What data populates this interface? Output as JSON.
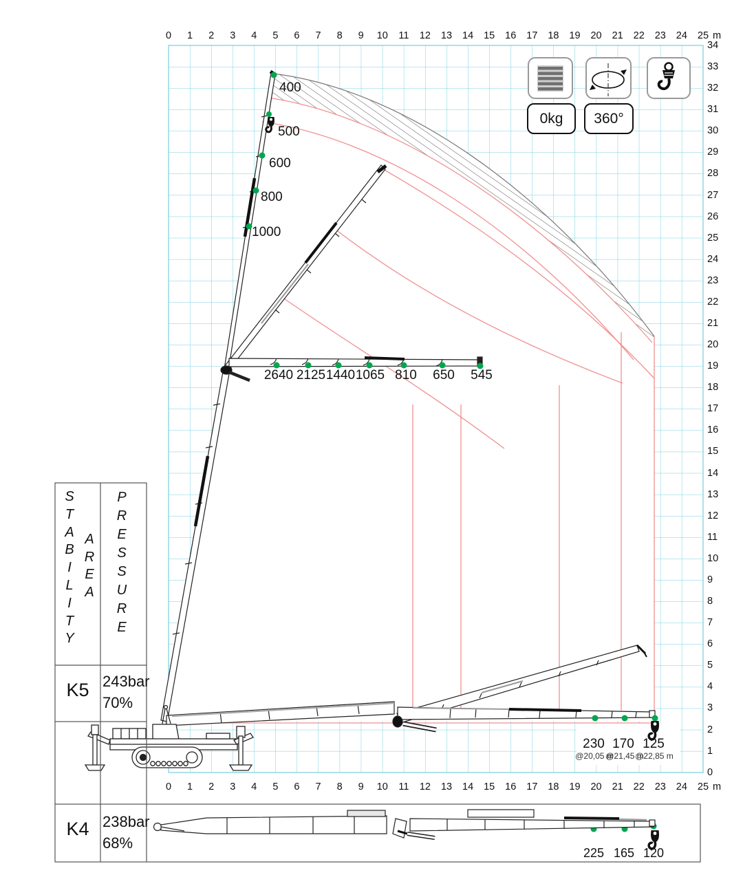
{
  "axes": {
    "x_labels": [
      "0",
      "1",
      "2",
      "3",
      "4",
      "5",
      "6",
      "7",
      "8",
      "9",
      "10",
      "11",
      "12",
      "13",
      "14",
      "15",
      "16",
      "17",
      "18",
      "19",
      "20",
      "21",
      "22",
      "23",
      "24",
      "25"
    ],
    "y_labels": [
      "34",
      "33",
      "32",
      "31",
      "30",
      "29",
      "28",
      "27",
      "26",
      "25",
      "24",
      "23",
      "22",
      "21",
      "20",
      "19",
      "18",
      "17",
      "16",
      "15",
      "14",
      "13",
      "12",
      "11",
      "10",
      "9",
      "8",
      "7",
      "6",
      "5",
      "4",
      "3",
      "2",
      "1",
      "0"
    ],
    "unit": "m"
  },
  "indicators": {
    "counterweight": "0kg",
    "slewing": "360°"
  },
  "side_panel": {
    "stability": "STABILITY",
    "area": "AREA",
    "pressure": "PRESSURE",
    "rows": [
      {
        "config": "K5",
        "pressure": "243bar",
        "percent": "70%"
      },
      {
        "config": "K4",
        "pressure": "238bar",
        "percent": "68%"
      }
    ]
  },
  "loads": {
    "vertical": [
      "400",
      "500",
      "600",
      "800",
      "1000"
    ],
    "jib": [
      "2640",
      "2125",
      "1440",
      "1065",
      "810",
      "650",
      "545"
    ],
    "low": [
      {
        "load": "230",
        "at": "@20,05 m"
      },
      {
        "load": "170",
        "at": "@21,45 m"
      },
      {
        "load": "125",
        "at": "@22,85 m"
      }
    ],
    "k4": [
      "225",
      "165",
      "120"
    ]
  }
}
